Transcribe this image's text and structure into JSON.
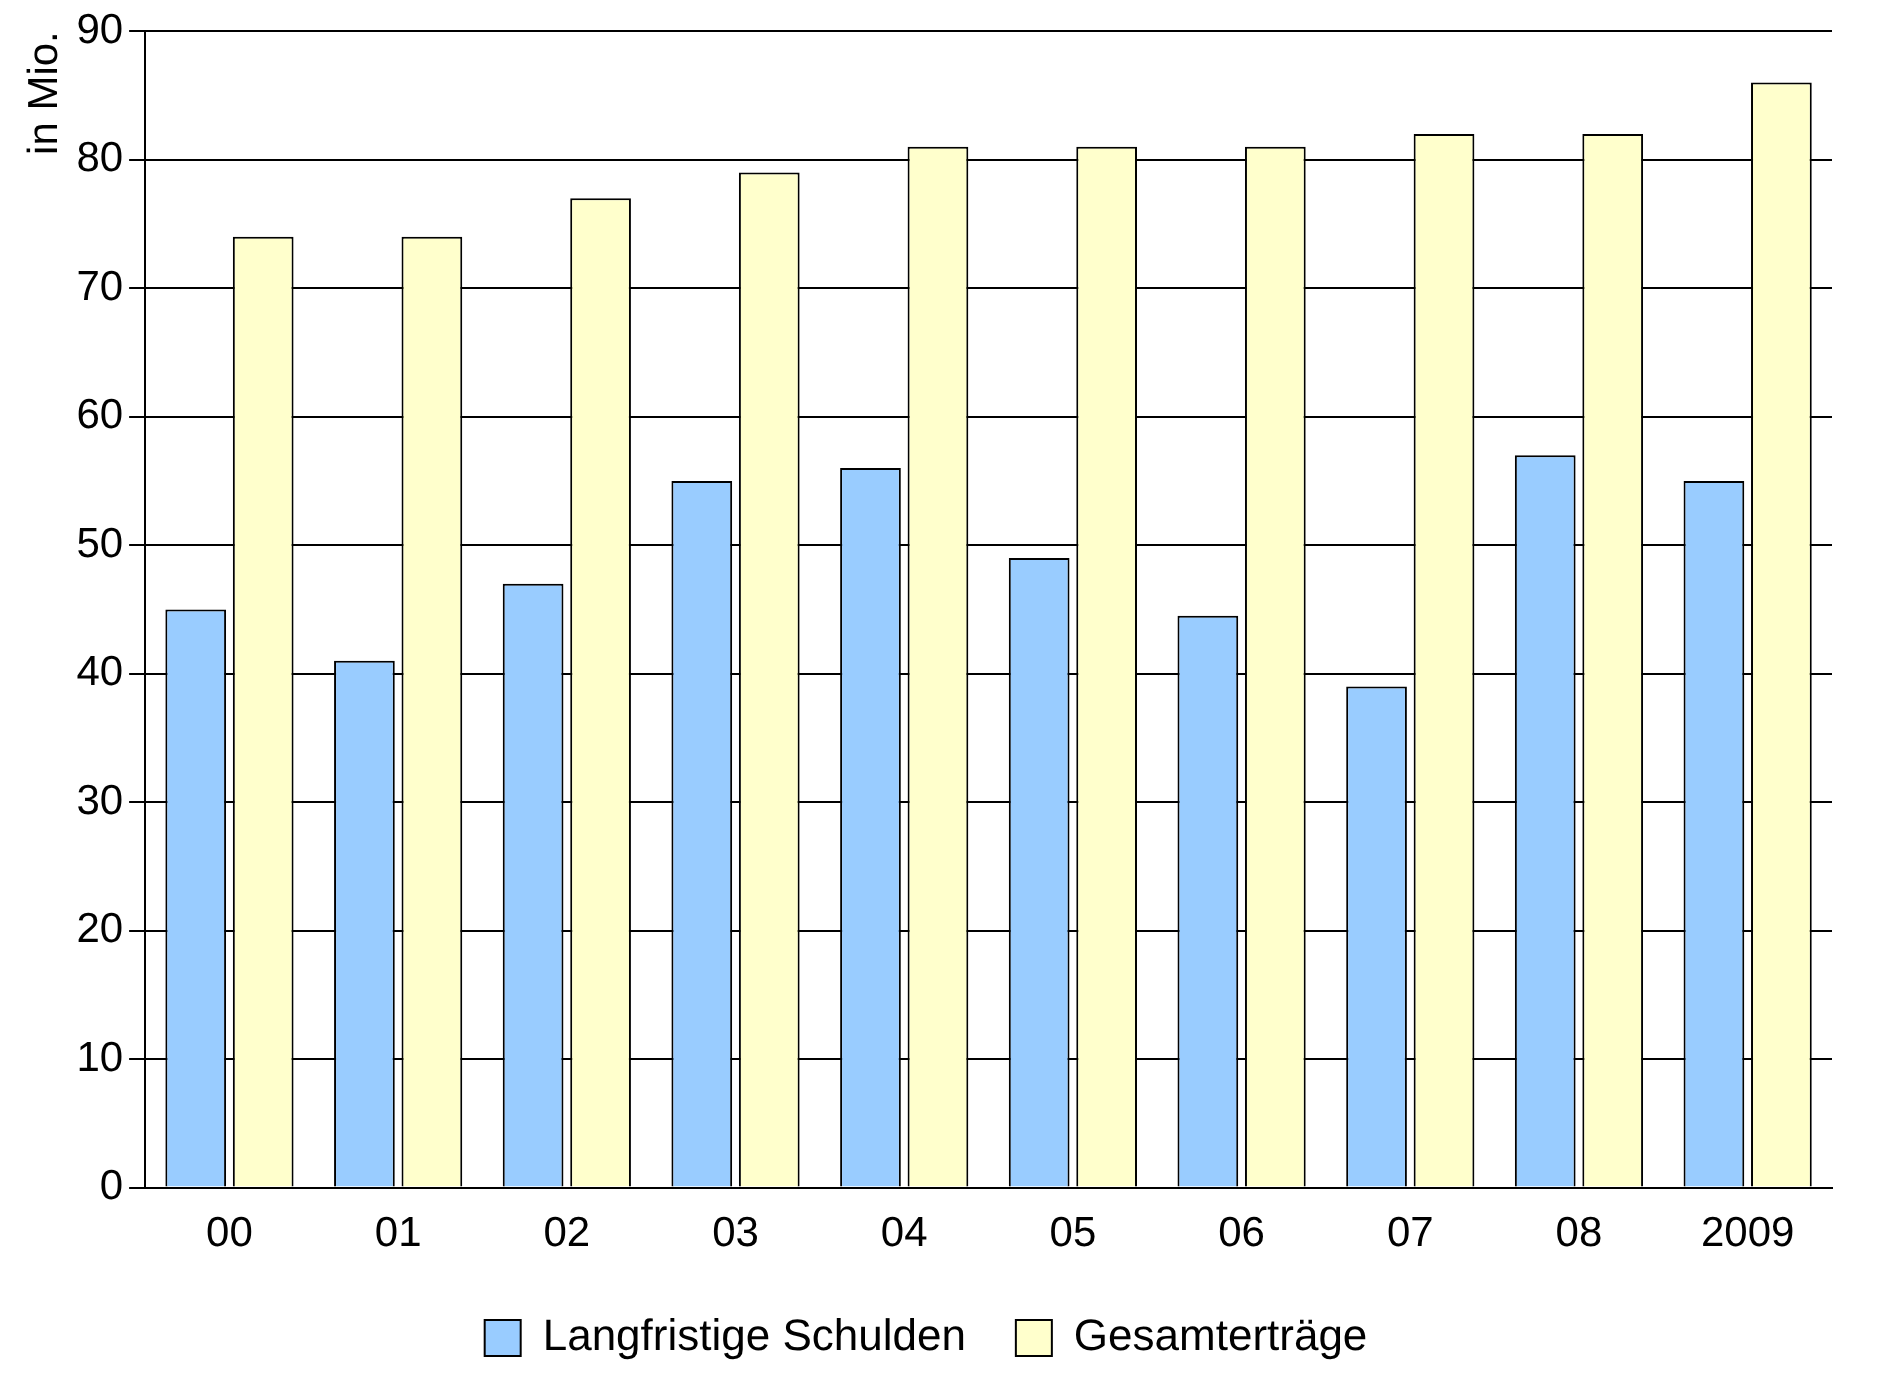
{
  "chart_data": {
    "type": "bar",
    "ylabel": "in Mio.",
    "categories": [
      "00",
      "01",
      "02",
      "03",
      "04",
      "05",
      "06",
      "07",
      "08",
      "2009"
    ],
    "series": [
      {
        "name": "Langfristige Schulden",
        "color": "#99ccff",
        "values": [
          45,
          41,
          47,
          55,
          56,
          49,
          44.5,
          39,
          57,
          55
        ]
      },
      {
        "name": "Gesamterträge",
        "color": "#ffffcc",
        "values": [
          74,
          74,
          77,
          79,
          81,
          81,
          81,
          82,
          82,
          86
        ]
      }
    ],
    "ylim": [
      0,
      90
    ],
    "yticks": [
      0,
      10,
      20,
      30,
      40,
      50,
      60,
      70,
      80,
      90
    ],
    "grid": "y",
    "legend": "bottom"
  }
}
